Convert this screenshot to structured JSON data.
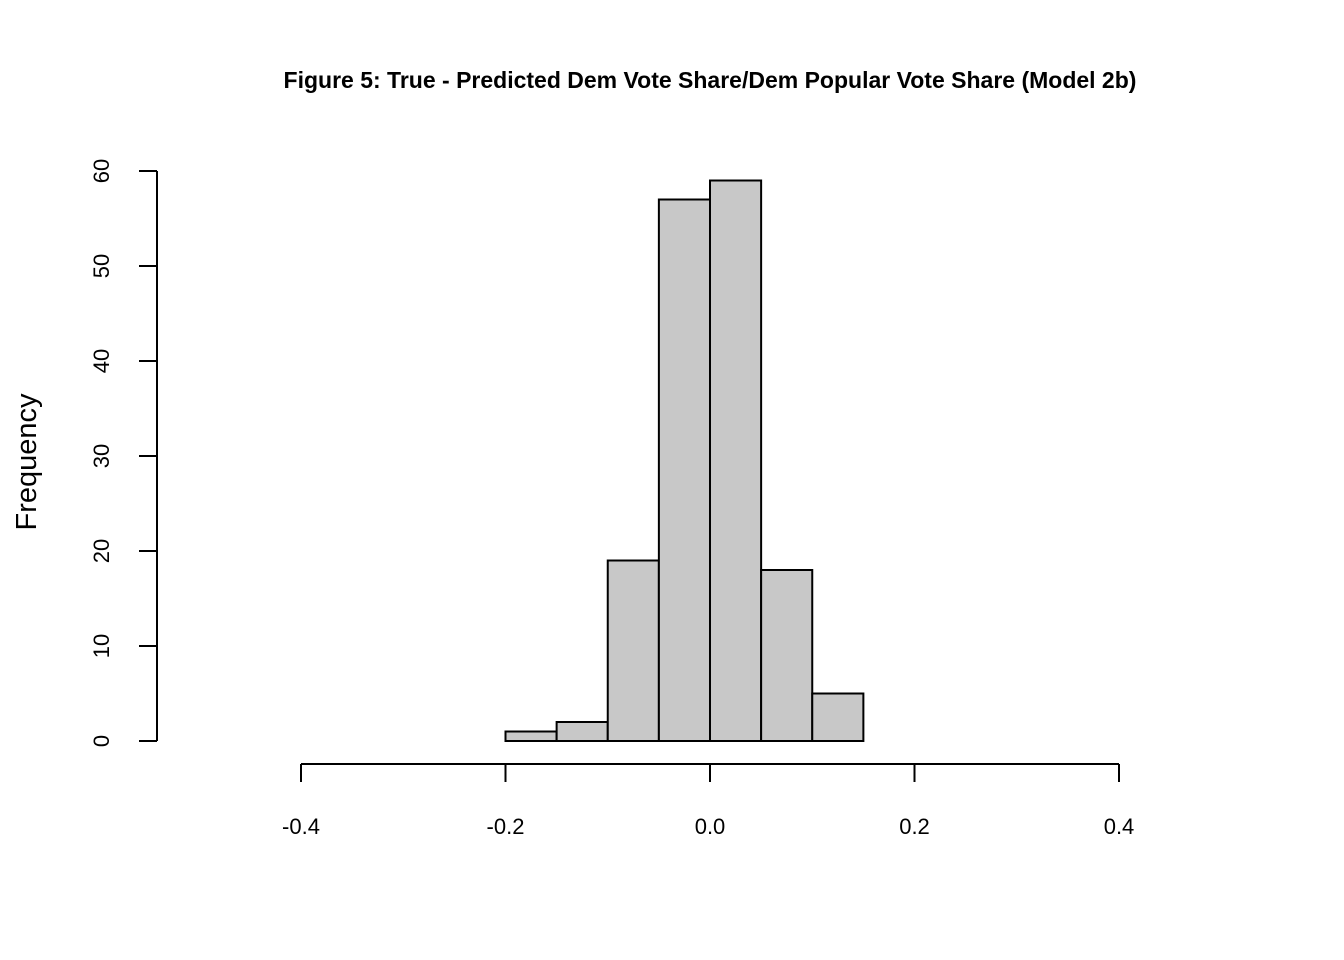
{
  "chart_data": {
    "type": "bar",
    "subtype": "histogram",
    "title": "Figure 5: True - Predicted Dem Vote Share/Dem Popular Vote Share (Model 2b)",
    "xlabel": "",
    "ylabel": "Frequency",
    "bin_edges": [
      -0.2,
      -0.15,
      -0.1,
      -0.05,
      0.0,
      0.05,
      0.1,
      0.15
    ],
    "values": [
      1,
      2,
      19,
      57,
      59,
      18,
      5
    ],
    "x_ticks": [
      -0.4,
      -0.2,
      0.0,
      0.2,
      0.4
    ],
    "x_tick_labels": [
      "-0.4",
      "-0.2",
      "0.0",
      "0.2",
      "0.4"
    ],
    "y_ticks": [
      0,
      10,
      20,
      30,
      40,
      50,
      60
    ],
    "y_tick_labels": [
      "0",
      "10",
      "20",
      "30",
      "40",
      "50",
      "60"
    ],
    "xlim": [
      -0.4,
      0.4
    ],
    "ylim": [
      0,
      60
    ],
    "grid": false,
    "legend": "none",
    "colors": {
      "bar_fill": "#c8c8c8",
      "bar_stroke": "#000000",
      "axis": "#000000",
      "background": "#ffffff"
    }
  }
}
